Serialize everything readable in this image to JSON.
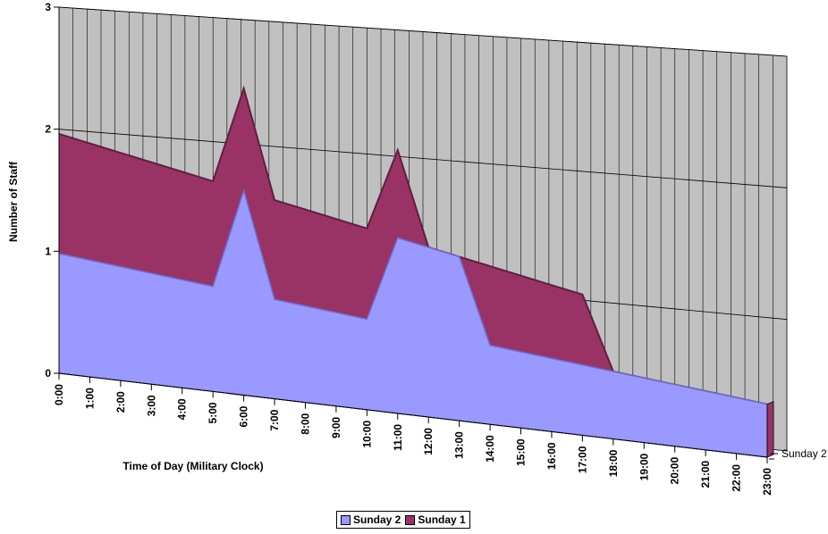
{
  "chart_data": {
    "type": "area",
    "title": "",
    "xlabel": "Time of Day (Military Clock)",
    "ylabel": "Number of Staff",
    "ylim": [
      0,
      3
    ],
    "y_ticks": [
      "0",
      "1",
      "2",
      "3"
    ],
    "categories": [
      "0:00",
      "1:00",
      "2:00",
      "3:00",
      "4:00",
      "5:00",
      "6:00",
      "7:00",
      "8:00",
      "9:00",
      "10:00",
      "11:00",
      "12:00",
      "13:00",
      "14:00",
      "15:00",
      "16:00",
      "17:00",
      "18:00",
      "19:00",
      "20:00",
      "21:00",
      "22:00",
      "23:00"
    ],
    "depth_labels": [
      "Sunday 2"
    ],
    "legend_position": "bottom",
    "grid": true,
    "series": [
      {
        "name": "Sunday 2",
        "color": "#9999ff",
        "values": [
          1,
          1,
          1,
          1,
          1,
          1,
          2,
          1,
          1,
          1,
          1,
          2,
          2,
          2,
          1,
          1,
          1,
          1,
          1,
          1,
          1,
          1,
          1,
          1
        ]
      },
      {
        "name": "Sunday 1",
        "color": "#993366",
        "values": [
          1,
          1,
          1,
          1,
          1,
          1,
          1,
          1,
          1,
          1,
          1,
          1,
          0,
          0,
          1,
          1,
          1,
          1,
          0,
          0,
          0,
          0,
          0,
          0
        ]
      }
    ]
  },
  "colors": {
    "wall": "#c0c0c0",
    "gridline": "#000000"
  }
}
